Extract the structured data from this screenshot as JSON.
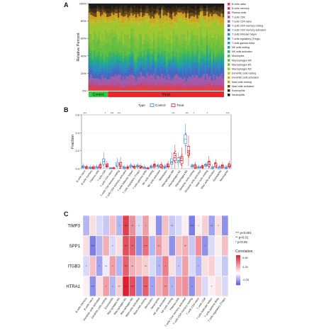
{
  "panels": {
    "a": "A",
    "b": "B",
    "c": "C"
  },
  "chart_data": [
    {
      "panel": "A",
      "type": "bar",
      "subtype": "stacked-100-percent",
      "ylabel": "Relative Percent",
      "yticks": [
        "0%",
        "20%",
        "40%",
        "60%",
        "80%",
        "100%"
      ],
      "ylim": [
        0,
        100
      ],
      "group_bar_labels": [
        "Control",
        "Treat"
      ],
      "group_colors": {
        "Control": "#2ecc40",
        "Treat": "#e8262c"
      },
      "n_samples": {
        "Control": 12,
        "Treat": 72
      },
      "legend_placement": "right",
      "cell_types": [
        "B cells naive",
        "B cells memory",
        "Plasma cells",
        "T cells CD8",
        "T cells CD4 naive",
        "T cells CD4 memory resting",
        "T cells CD4 memory activated",
        "T cells follicular helper",
        "T cells regulatory (Tregs)",
        "T cells gamma delta",
        "NK cells resting",
        "NK cells activated",
        "Monocytes",
        "Macrophages M0",
        "Macrophages M1",
        "Macrophages M2",
        "Dendritic cells resting",
        "Dendritic cells activated",
        "Mast cells resting",
        "Mast cells activated",
        "Eosinophils",
        "Neutrophils"
      ],
      "colors": [
        "#e6443c",
        "#d6405e",
        "#c44a8a",
        "#a65aa8",
        "#8e6ab8",
        "#4a66c2",
        "#3a78c8",
        "#2f88c4",
        "#2a96b6",
        "#25a2a4",
        "#22ac8e",
        "#2eb476",
        "#44ba5a",
        "#62c044",
        "#7ec43a",
        "#9cc832",
        "#b8c42c",
        "#c8b428",
        "#d4a024",
        "#6a4c1c",
        "#3c2c14",
        "#1a1a1a"
      ],
      "approx_mean_percent": [
        2,
        3,
        2,
        6,
        2,
        5,
        3,
        3,
        3,
        2,
        3,
        3,
        3,
        10,
        9,
        13,
        4,
        3,
        4,
        4,
        4,
        4
      ]
    },
    {
      "panel": "B",
      "type": "box",
      "ylabel": "Fraction",
      "ylim": [
        0,
        0.6
      ],
      "yticks": [
        0,
        0.2,
        0.4,
        0.6
      ],
      "ytick_labels": [
        "0.0",
        "0.2",
        "0.4",
        "0.6"
      ],
      "legend_title": "Type",
      "legend_placement": "top",
      "series": [
        {
          "name": "Control",
          "color": "#3b82d6"
        },
        {
          "name": "Treat",
          "color": "#e0212b"
        }
      ],
      "categories": [
        "B cells naive",
        "B cells memory",
        "Plasma cells",
        "T cells CD8",
        "T cells CD4 naive",
        "T cells CD4 memory resting",
        "T cells CD4 memory activated",
        "T cells follicular helper",
        "T cells regulatory (Tregs)",
        "T cells gamma delta",
        "NK cells resting",
        "NK cells activated",
        "Monocytes",
        "Macrophages M0",
        "Macrophages M1",
        "Macrophages M2",
        "Dendritic cells resting",
        "Dendritic cells activated",
        "Mast cells resting",
        "Mast cells activated",
        "Eosinophils",
        "Neutrophils"
      ],
      "control_median": [
        0.02,
        0.01,
        0.01,
        0.08,
        0.0,
        0.05,
        0.01,
        0.03,
        0.03,
        0.01,
        0.02,
        0.03,
        0.02,
        0.08,
        0.09,
        0.33,
        0.03,
        0.01,
        0.04,
        0.01,
        0.01,
        0.01
      ],
      "treat_median": [
        0.01,
        0.01,
        0.02,
        0.03,
        0.0,
        0.04,
        0.01,
        0.02,
        0.02,
        0.0,
        0.03,
        0.02,
        0.03,
        0.12,
        0.09,
        0.2,
        0.02,
        0.02,
        0.05,
        0.04,
        0.02,
        0.03
      ],
      "control_q1": [
        0.01,
        0.0,
        0.0,
        0.05,
        0.0,
        0.03,
        0.0,
        0.02,
        0.02,
        0.0,
        0.01,
        0.02,
        0.01,
        0.05,
        0.07,
        0.28,
        0.02,
        0.0,
        0.03,
        0.0,
        0.0,
        0.0
      ],
      "control_q3": [
        0.03,
        0.02,
        0.02,
        0.11,
        0.01,
        0.07,
        0.02,
        0.04,
        0.04,
        0.02,
        0.03,
        0.04,
        0.03,
        0.11,
        0.12,
        0.38,
        0.04,
        0.02,
        0.05,
        0.02,
        0.02,
        0.02
      ],
      "treat_q1": [
        0.0,
        0.0,
        0.01,
        0.02,
        0.0,
        0.02,
        0.0,
        0.01,
        0.01,
        0.0,
        0.02,
        0.01,
        0.02,
        0.09,
        0.06,
        0.15,
        0.01,
        0.01,
        0.03,
        0.02,
        0.01,
        0.02
      ],
      "treat_q3": [
        0.02,
        0.02,
        0.04,
        0.05,
        0.01,
        0.07,
        0.02,
        0.03,
        0.03,
        0.01,
        0.05,
        0.04,
        0.05,
        0.17,
        0.14,
        0.25,
        0.04,
        0.03,
        0.08,
        0.06,
        0.04,
        0.05
      ],
      "significance": [
        "***",
        "",
        "",
        "*",
        "***",
        "***",
        "",
        "",
        "",
        "",
        "",
        "",
        "",
        "***",
        "",
        "***",
        "*",
        "",
        "*",
        "",
        "",
        "***"
      ]
    },
    {
      "panel": "C",
      "type": "heatmap",
      "rows": [
        "TIMP3",
        "SPP1",
        "ITGB3",
        "HTRA1"
      ],
      "columns": [
        "B cells memory",
        "B cells naive",
        "Dendritic cells activated",
        "Dendritic cells resting",
        "Eosinophils",
        "Macrophages M0",
        "Macrophages M1",
        "Macrophages M2",
        "Mast cells activated",
        "Mast cells resting",
        "Monocytes",
        "Neutrophils",
        "NK cells activated",
        "NK cells resting",
        "Plasma cells",
        "T cells CD4 memory activated",
        "T cells CD4 memory resting",
        "T cells CD4 naive",
        "T cells CD8",
        "T cells follicular helper",
        "T cells gamma delta",
        "T cells regulatory (Tregs)"
      ],
      "colorbar_title": "Correlation",
      "colorbar_ticks": [
        "0.60",
        "0.25",
        "-0.25"
      ],
      "colorbar_range": [
        -0.45,
        0.7
      ],
      "significance_legend": [
        "*** p<0.001",
        "** p<0.01",
        "* p<0.05"
      ],
      "values": [
        [
          -0.2,
          0.1,
          -0.1,
          -0.15,
          0.2,
          -0.2,
          0.6,
          0.35,
          -0.1,
          0.3,
          0.05,
          -0.3,
          0.2,
          -0.15,
          -0.1,
          0.05,
          -0.35,
          0.05,
          0.15,
          -0.25,
          0.1,
          -0.3
        ],
        [
          0.1,
          -0.35,
          -0.2,
          0.25,
          -0.1,
          0.1,
          0.55,
          0.5,
          -0.3,
          0.45,
          -0.2,
          0.3,
          0.15,
          -0.3,
          0.2,
          0.25,
          -0.15,
          0.35,
          -0.3,
          -0.1,
          0.05,
          0.2
        ],
        [
          -0.1,
          0.2,
          -0.25,
          -0.05,
          0.3,
          -0.2,
          0.5,
          0.25,
          0.2,
          0.15,
          -0.1,
          -0.2,
          0.4,
          0.1,
          -0.15,
          0.3,
          -0.1,
          -0.2,
          0.1,
          0.15,
          -0.05,
          -0.15
        ],
        [
          0.05,
          -0.3,
          0.1,
          0.3,
          -0.2,
          0.15,
          0.7,
          0.55,
          -0.3,
          0.5,
          -0.25,
          0.25,
          0.35,
          -0.2,
          0.3,
          0.35,
          -0.3,
          0.2,
          -0.1,
          0.05,
          0.1,
          -0.1
        ]
      ],
      "stars": [
        [
          "",
          "",
          "",
          "",
          "",
          "*",
          "***",
          "**",
          "*",
          "*",
          "",
          "",
          "",
          "**",
          "",
          "",
          "***",
          "*",
          "",
          "**",
          "*",
          ""
        ],
        [
          "",
          "***",
          "",
          "",
          "*",
          "",
          "***",
          "**",
          "",
          "***",
          "",
          "**",
          "",
          "",
          "",
          "**",
          "",
          "",
          "*",
          "",
          "",
          ""
        ],
        [
          "*",
          "",
          "*",
          "**",
          "*",
          "",
          "***",
          "**",
          "",
          "**",
          "",
          "*",
          "*",
          "",
          "*",
          "",
          "",
          "*",
          "",
          "",
          "",
          ""
        ],
        [
          "",
          "***",
          "",
          "*",
          "*",
          "**",
          "***",
          "***",
          "",
          "***",
          "*",
          "",
          "**",
          "*",
          "",
          "",
          "*",
          "",
          "",
          "*",
          "",
          ""
        ]
      ]
    }
  ]
}
